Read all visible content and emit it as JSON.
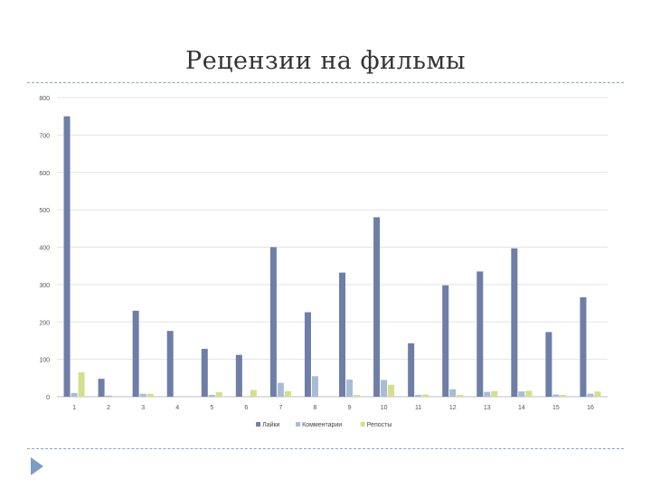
{
  "slide": {
    "title": "Рецензии на фильмы"
  },
  "chart_data": {
    "type": "bar",
    "title": "",
    "xlabel": "",
    "ylabel": "",
    "ylim": [
      0,
      800
    ],
    "yticks": [
      0,
      100,
      200,
      300,
      400,
      500,
      600,
      700,
      800
    ],
    "grid": true,
    "legend_position": "bottom",
    "categories": [
      "1",
      "2",
      "3",
      "4",
      "5",
      "6",
      "7",
      "8",
      "9",
      "10",
      "11",
      "12",
      "13",
      "14",
      "15",
      "16"
    ],
    "series": [
      {
        "name": "Лайки",
        "color": "#6e7ea6",
        "values": [
          750,
          48,
          230,
          176,
          128,
          112,
          400,
          226,
          332,
          480,
          143,
          298,
          335,
          397,
          173,
          266
        ]
      },
      {
        "name": "Комментарии",
        "color": "#a9bcd2",
        "values": [
          10,
          3,
          8,
          0,
          5,
          0,
          37,
          55,
          46,
          45,
          5,
          20,
          13,
          14,
          6,
          8
        ]
      },
      {
        "name": "Репосты",
        "color": "#d3df8e",
        "values": [
          65,
          0,
          8,
          0,
          12,
          18,
          15,
          0,
          5,
          32,
          6,
          5,
          15,
          16,
          5,
          14
        ]
      }
    ]
  }
}
